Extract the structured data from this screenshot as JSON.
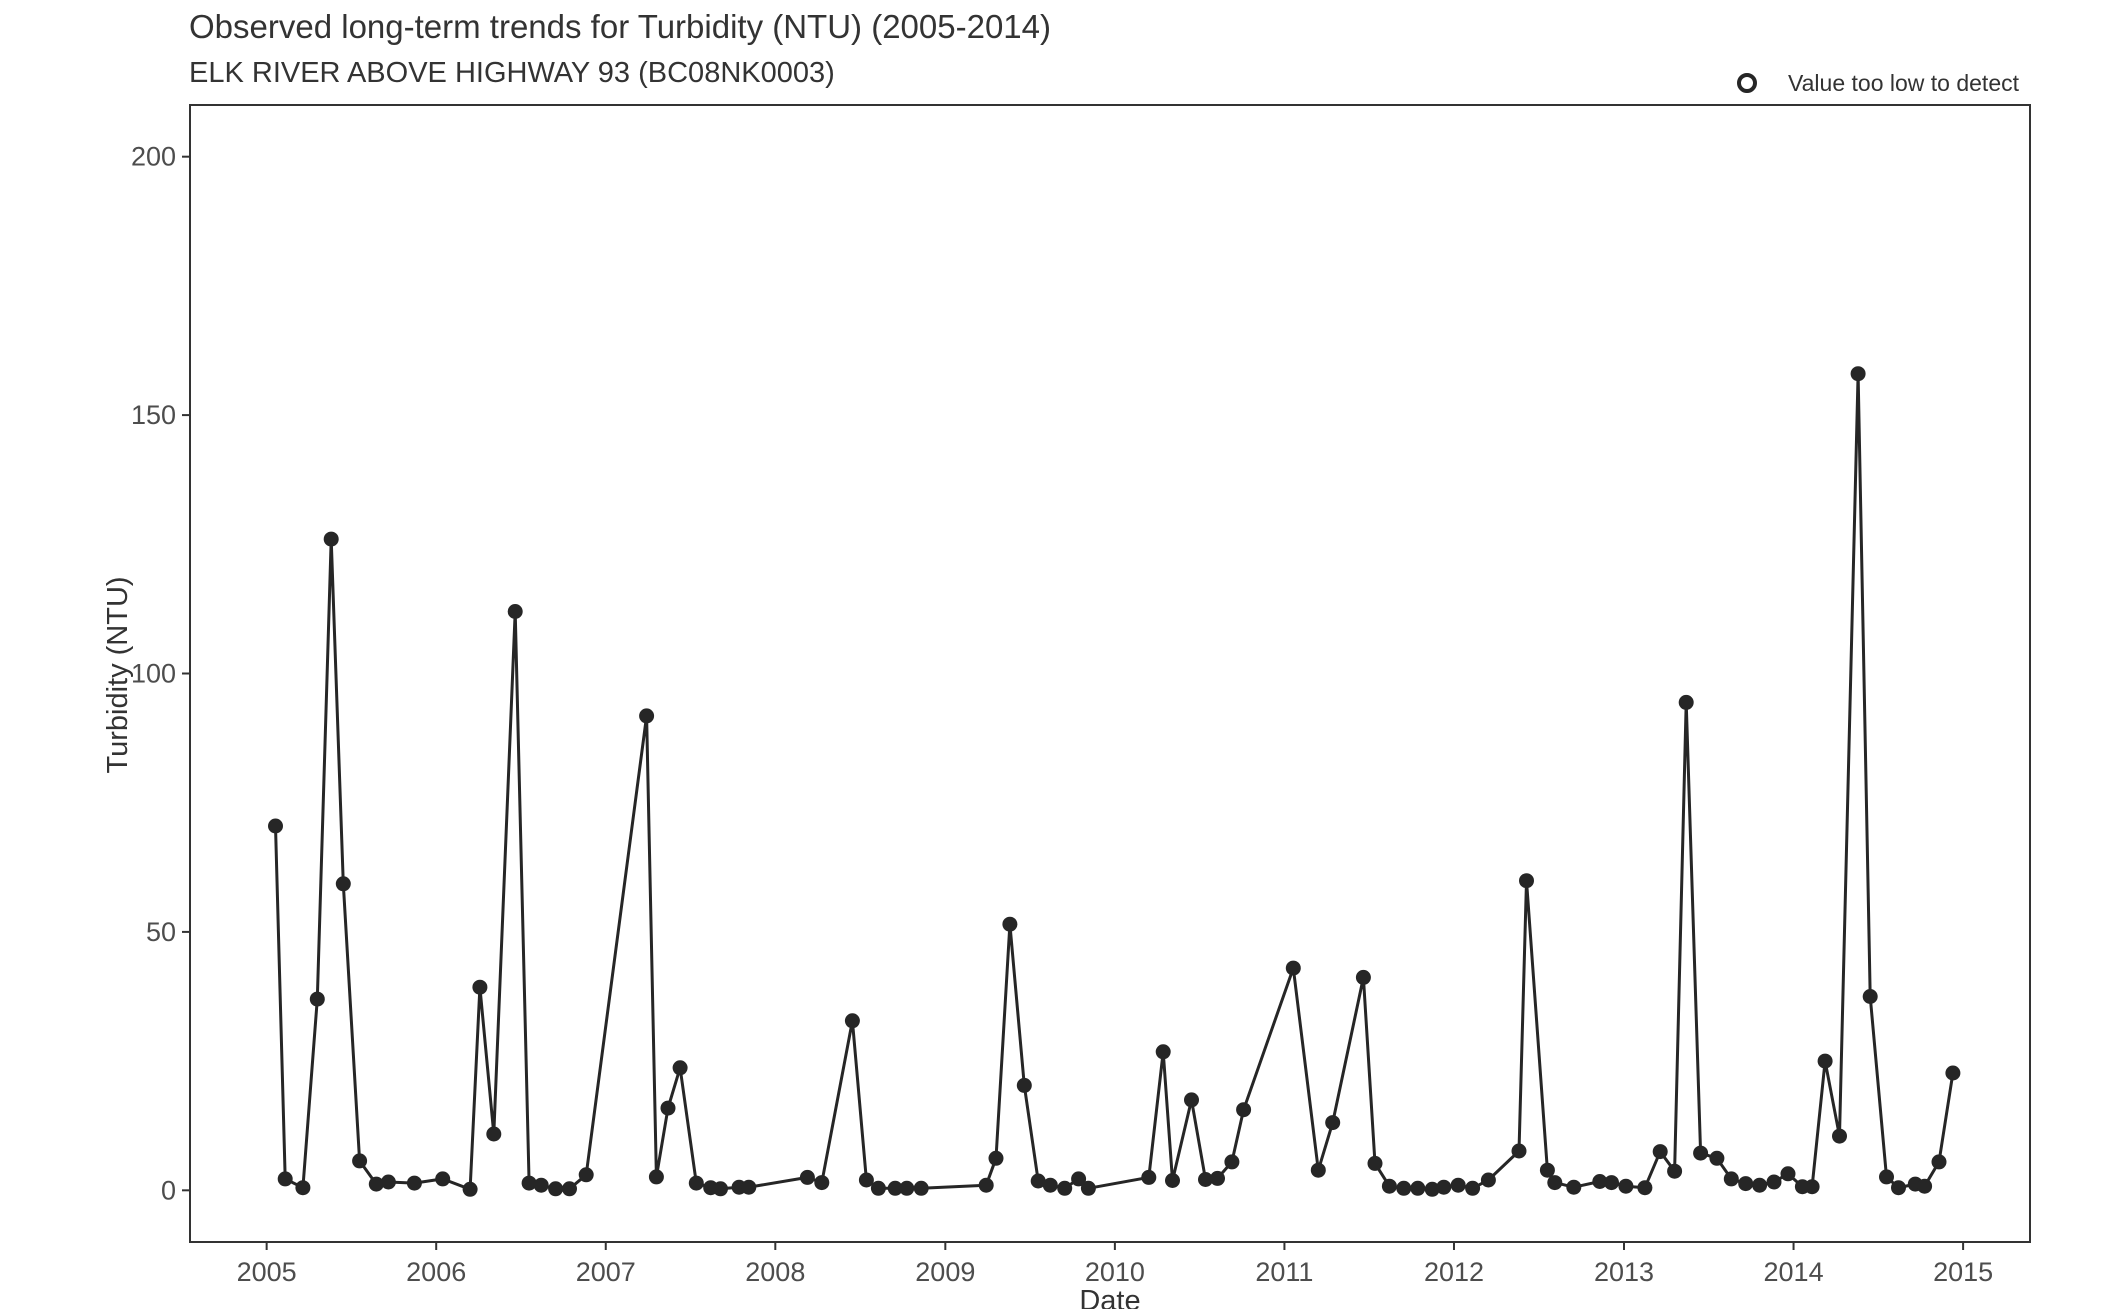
{
  "chart_data": {
    "type": "line",
    "title": "Observed long-term trends for Turbidity (NTU) (2005-2014)",
    "subtitle": "ELK RIVER ABOVE HIGHWAY 93 (BC08NK0003)",
    "xlabel": "Date",
    "ylabel": "Turbidity (NTU)",
    "xlim": [
      "2004-07-20",
      "2015-05-25"
    ],
    "ylim": [
      -10,
      210
    ],
    "x_ticks": [
      "2005",
      "2006",
      "2007",
      "2008",
      "2009",
      "2010",
      "2011",
      "2012",
      "2013",
      "2014",
      "2015"
    ],
    "y_ticks": [
      0,
      50,
      100,
      150,
      200
    ],
    "grid": false,
    "legend": {
      "position": "top-right",
      "entries": [
        {
          "label": "Value too low to detect",
          "marker": "open-circle"
        }
      ]
    },
    "colors": {
      "line": "#262626",
      "point": "#262626"
    },
    "series": [
      {
        "x": [
          "2005-01-20",
          "2005-02-10",
          "2005-03-20",
          "2005-04-20",
          "2005-05-20",
          "2005-06-15",
          "2005-07-20",
          "2005-08-25",
          "2005-09-20",
          "2005-11-15",
          "2006-01-15",
          "2006-03-15",
          "2006-04-05",
          "2006-05-05",
          "2006-06-20",
          "2006-07-20",
          "2006-08-15",
          "2006-09-15",
          "2006-10-15",
          "2006-11-20",
          "2007-03-30",
          "2007-04-20",
          "2007-05-15",
          "2007-06-10",
          "2007-07-15",
          "2007-08-15",
          "2007-09-05",
          "2007-10-15",
          "2007-11-05",
          "2008-03-10",
          "2008-04-10",
          "2008-06-15",
          "2008-07-15",
          "2008-08-10",
          "2008-09-15",
          "2008-10-10",
          "2008-11-10",
          "2009-03-30",
          "2009-04-20",
          "2009-05-20",
          "2009-06-20",
          "2009-07-20",
          "2009-08-15",
          "2009-09-15",
          "2009-10-15",
          "2009-11-05",
          "2010-03-15",
          "2010-04-15",
          "2010-05-05",
          "2010-06-15",
          "2010-07-15",
          "2010-08-10",
          "2010-09-10",
          "2010-10-05",
          "2011-01-20",
          "2011-03-15",
          "2011-04-15",
          "2011-06-20",
          "2011-07-15",
          "2011-08-15",
          "2011-09-15",
          "2011-10-15",
          "2011-11-15",
          "2011-12-10",
          "2012-01-10",
          "2012-02-10",
          "2012-03-15",
          "2012-05-20",
          "2012-06-05",
          "2012-07-20",
          "2012-08-05",
          "2012-09-15",
          "2012-11-10",
          "2012-12-05",
          "2013-01-05",
          "2013-02-15",
          "2013-03-20",
          "2013-04-20",
          "2013-05-15",
          "2013-06-15",
          "2013-07-20",
          "2013-08-20",
          "2013-09-20",
          "2013-10-20",
          "2013-11-20",
          "2013-12-20",
          "2014-01-20",
          "2014-02-10",
          "2014-03-10",
          "2014-04-10",
          "2014-05-20",
          "2014-06-15",
          "2014-07-20",
          "2014-08-15",
          "2014-09-20",
          "2014-10-10",
          "2014-11-10",
          "2014-12-10"
        ],
        "y": [
          70.5,
          2.2,
          0.5,
          37,
          126,
          59.3,
          5.7,
          1.2,
          1.6,
          1.4,
          2.2,
          0.2,
          39.3,
          10.9,
          112,
          1.4,
          1,
          0.3,
          0.3,
          3,
          91.8,
          2.6,
          15.9,
          23.7,
          1.4,
          0.5,
          0.3,
          0.6,
          0.6,
          2.5,
          1.5,
          32.8,
          2,
          0.4,
          0.4,
          0.4,
          0.4,
          1,
          6.2,
          51.5,
          20.3,
          1.8,
          1,
          0.4,
          2.2,
          0.4,
          2.5,
          26.8,
          1.9,
          17.5,
          2.1,
          2.3,
          5.5,
          15.6,
          43,
          3.9,
          13.1,
          41.2,
          5.2,
          0.8,
          0.4,
          0.4,
          0.2,
          0.6,
          1,
          0.4,
          2,
          7.6,
          59.9,
          3.9,
          1.5,
          0.6,
          1.7,
          1.5,
          0.8,
          0.5,
          7.5,
          3.7,
          94.4,
          7.2,
          6.2,
          2.2,
          1.3,
          1,
          1.6,
          3.2,
          0.7,
          0.7,
          25,
          10.5,
          158,
          37.5,
          2.6,
          0.5,
          1.2,
          0.8,
          5.5,
          22.7
        ]
      }
    ]
  }
}
